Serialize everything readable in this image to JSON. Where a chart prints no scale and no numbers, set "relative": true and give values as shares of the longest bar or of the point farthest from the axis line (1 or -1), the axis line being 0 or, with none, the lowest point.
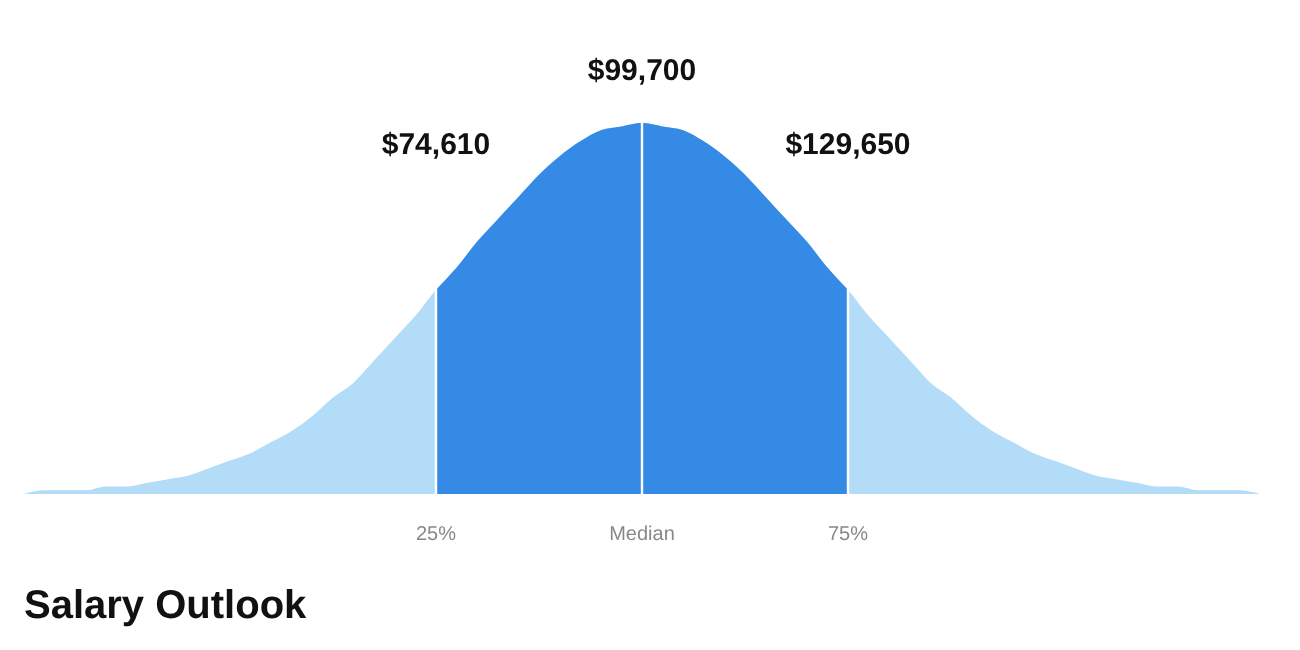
{
  "chart_data": {
    "type": "area",
    "relative": true,
    "title": "Salary Outlook",
    "categories": [
      null,
      null,
      null,
      null,
      null,
      null,
      null,
      null,
      null,
      null,
      null,
      null,
      null,
      null,
      null,
      null,
      null,
      null,
      null,
      null,
      "25%",
      null,
      null,
      null,
      null,
      null,
      null,
      null,
      null,
      null,
      "Median",
      null,
      null,
      null,
      null,
      null,
      null,
      null,
      null,
      null,
      "75%",
      null,
      null,
      null,
      null,
      null,
      null,
      null,
      null,
      null,
      null,
      null,
      null,
      null,
      null,
      null,
      null,
      null,
      null,
      null,
      null
    ],
    "series": [
      {
        "color": "#b3dcf8",
        "values": [
          0.0,
          0.01,
          0.01,
          0.01,
          0.02,
          0.02,
          0.03,
          0.04,
          0.05,
          0.07,
          0.09,
          0.11,
          0.14,
          0.17,
          0.21,
          0.26,
          0.3,
          0.36,
          0.42,
          0.48,
          0.55,
          0.61,
          0.68,
          0.74,
          0.8,
          0.86,
          0.91,
          0.95,
          0.98,
          0.99,
          1.0,
          0.99,
          0.98,
          0.95,
          0.91,
          0.86,
          0.8,
          0.74,
          0.68,
          0.61,
          0.55,
          0.48,
          0.42,
          0.36,
          0.3,
          0.26,
          0.21,
          0.17,
          0.14,
          0.11,
          0.09,
          0.07,
          0.05,
          0.04,
          0.03,
          0.02,
          0.02,
          0.01,
          0.01,
          0.01,
          0.0
        ]
      },
      {
        "color": "#348ae4",
        "values": [
          null,
          null,
          null,
          null,
          null,
          null,
          null,
          null,
          null,
          null,
          null,
          null,
          null,
          null,
          null,
          null,
          null,
          null,
          null,
          null,
          0.55,
          0.61,
          0.68,
          0.74,
          0.8,
          0.86,
          0.91,
          0.95,
          0.98,
          0.99,
          1.0,
          0.99,
          0.98,
          0.95,
          0.91,
          0.86,
          0.8,
          0.74,
          0.68,
          0.61,
          0.55,
          null,
          null,
          null,
          null,
          null,
          null,
          null,
          null,
          null,
          null,
          null,
          null,
          null,
          null,
          null,
          null,
          null,
          null,
          null,
          null
        ]
      }
    ],
    "ref_lines": [
      {
        "axis": "x",
        "value": "25%",
        "color": "#ffffff"
      },
      {
        "axis": "x",
        "value": "Median",
        "color": "#ffffff"
      },
      {
        "axis": "x",
        "value": "75%",
        "color": "#ffffff"
      }
    ],
    "annotations": [
      {
        "text": "$74,610",
        "x": "25%"
      },
      {
        "text": "$99,700",
        "x": "Median"
      },
      {
        "text": "$129,650",
        "x": "75%"
      }
    ]
  }
}
